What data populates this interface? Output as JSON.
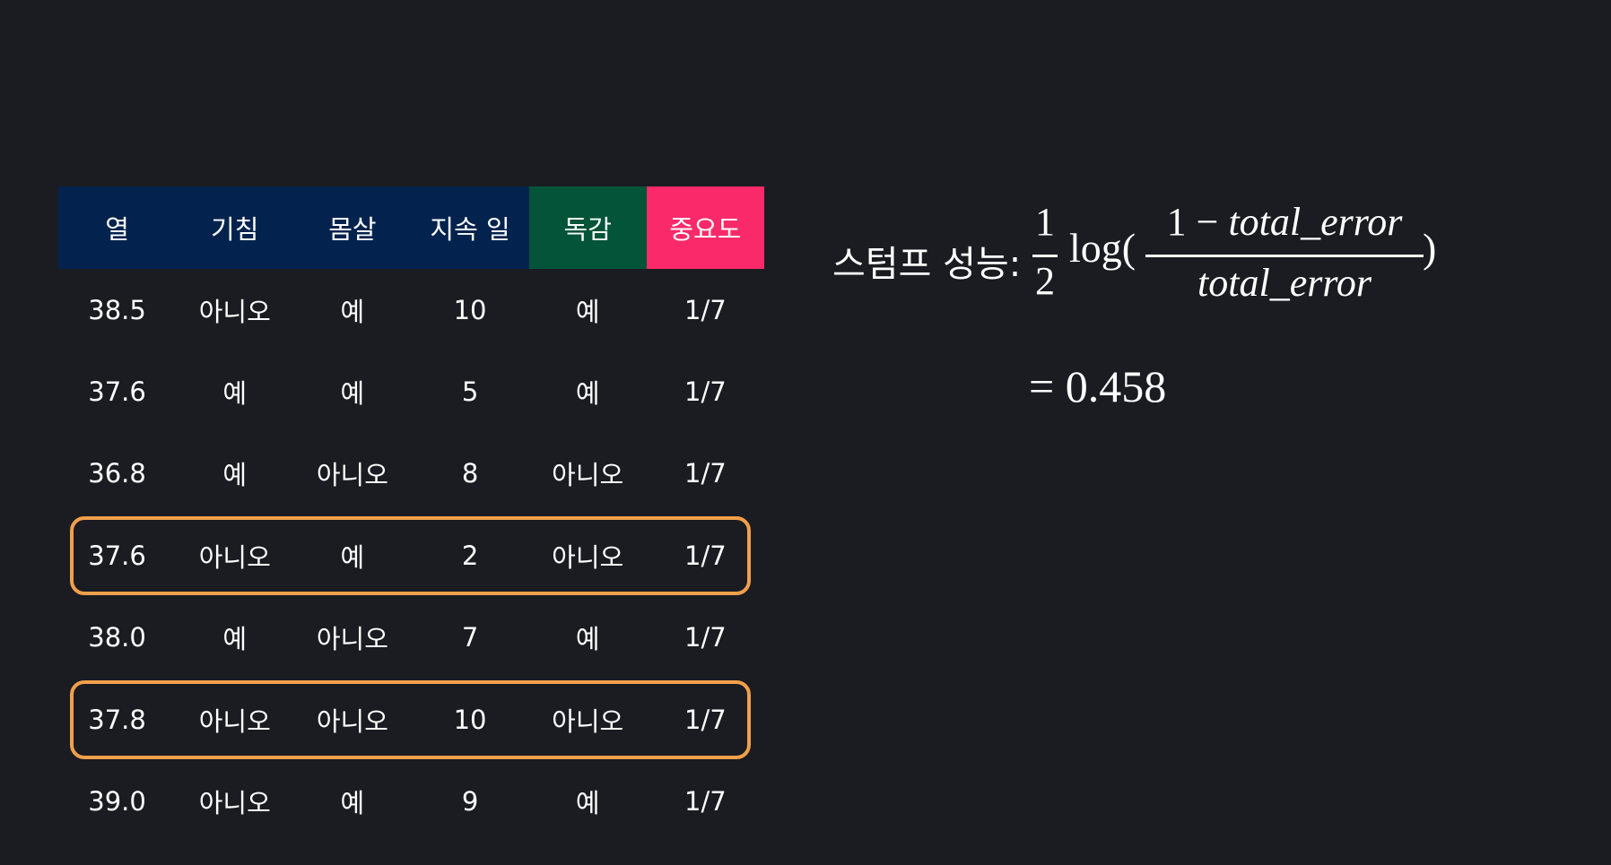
{
  "table": {
    "headers": [
      {
        "label": "열",
        "color": "#03234e"
      },
      {
        "label": "기침",
        "color": "#03234e"
      },
      {
        "label": "몸살",
        "color": "#03234e"
      },
      {
        "label": "지속 일",
        "color": "#03234e"
      },
      {
        "label": "독감",
        "color": "#035438"
      },
      {
        "label": "중요도",
        "color": "#fa2a6a"
      }
    ],
    "rows": [
      [
        "38.5",
        "아니오",
        "예",
        "10",
        "예",
        "1/7"
      ],
      [
        "37.6",
        "예",
        "예",
        "5",
        "예",
        "1/7"
      ],
      [
        "36.8",
        "예",
        "아니오",
        "8",
        "아니오",
        "1/7"
      ],
      [
        "37.6",
        "아니오",
        "예",
        "2",
        "아니오",
        "1/7"
      ],
      [
        "38.0",
        "예",
        "아니오",
        "7",
        "예",
        "1/7"
      ],
      [
        "37.8",
        "아니오",
        "아니오",
        "10",
        "아니오",
        "1/7"
      ],
      [
        "39.0",
        "아니오",
        "예",
        "9",
        "예",
        "1/7"
      ]
    ],
    "highlighted_rows": [
      3,
      5
    ],
    "highlight_color": "#f0a04b"
  },
  "formula": {
    "label": "스텀프 성능:",
    "half_num": "1",
    "half_den": "2",
    "log": "log(",
    "numerator_prefix": "1 − ",
    "numerator_var": "total_error",
    "denominator_var": "total_error",
    "close": ")",
    "result": "= 0.458"
  },
  "colors": {
    "background": "#1b1c21",
    "text": "#ffffff"
  }
}
